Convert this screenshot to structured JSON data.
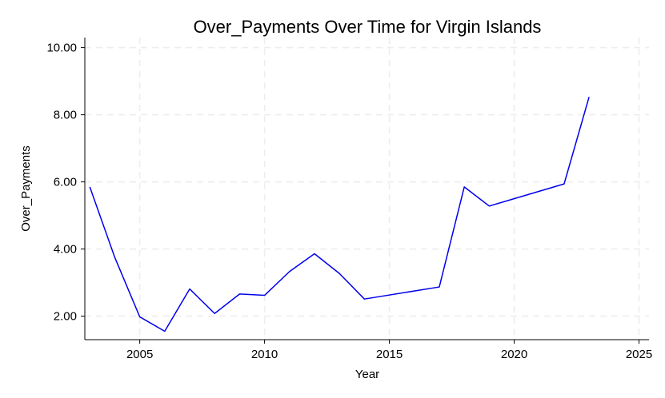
{
  "chart_data": {
    "type": "line",
    "title": "Over_Payments Over Time for Virgin Islands",
    "xlabel": "Year",
    "ylabel": "Over_Payments",
    "xlim": [
      2002.8,
      2025.4
    ],
    "ylim": [
      1.3,
      10.3
    ],
    "xticks": [
      2005,
      2010,
      2015,
      2020,
      2025
    ],
    "yticks": [
      2.0,
      4.0,
      6.0,
      8.0,
      10.0
    ],
    "ytick_labels": [
      "2.00",
      "4.00",
      "6.00",
      "8.00",
      "10.00"
    ],
    "grid": true,
    "series": [
      {
        "color": "#0000ee",
        "x": [
          2003,
          2004,
          2005,
          2006,
          2007,
          2008,
          2009,
          2010,
          2011,
          2012,
          2013,
          2014,
          2017,
          2018,
          2019,
          2022,
          2023
        ],
        "values": [
          5.85,
          3.75,
          1.98,
          1.55,
          2.81,
          2.08,
          2.66,
          2.62,
          3.33,
          3.86,
          3.27,
          2.51,
          2.87,
          5.85,
          5.28,
          5.94,
          8.53
        ]
      }
    ]
  }
}
